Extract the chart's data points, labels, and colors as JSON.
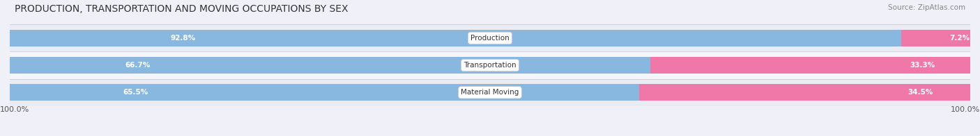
{
  "title": "PRODUCTION, TRANSPORTATION AND MOVING OCCUPATIONS BY SEX",
  "source": "Source: ZipAtlas.com",
  "categories": [
    "Production",
    "Transportation",
    "Material Moving"
  ],
  "male_values": [
    92.8,
    66.7,
    65.5
  ],
  "female_values": [
    7.2,
    33.3,
    34.5
  ],
  "male_color": "#88b8e0",
  "female_color": "#f078a8",
  "male_label_color": "#ffffff",
  "female_label_color": "#ffffff",
  "bg_color": "#f0f0f8",
  "bar_bg_color": "#e2e2ec",
  "row_bg_even": "#ebebf4",
  "row_bg_odd": "#f5f5fb",
  "left_axis_label": "100.0%",
  "right_axis_label": "100.0%",
  "title_fontsize": 10,
  "source_fontsize": 7.5,
  "bar_label_fontsize": 7.5,
  "category_label_fontsize": 7.5,
  "axis_label_fontsize": 8,
  "legend_fontsize": 8,
  "figwidth": 14.06,
  "figheight": 1.96,
  "dpi": 100
}
